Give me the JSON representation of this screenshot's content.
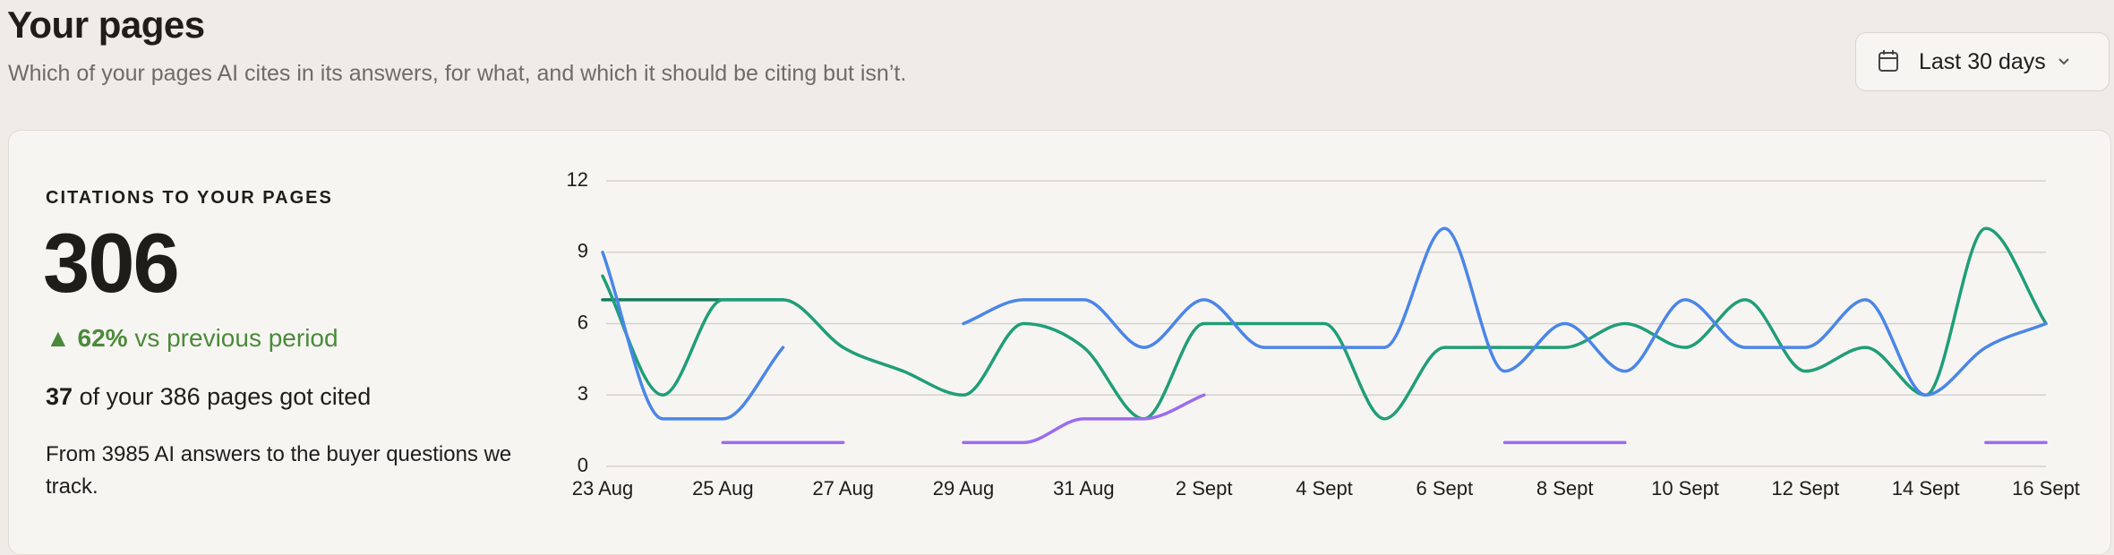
{
  "header": {
    "title": "Your pages",
    "subtitle": "Which of your pages AI cites in its answers, for what, and which it should be citing but isn’t."
  },
  "date_picker": {
    "label": "Last 30 days"
  },
  "stats": {
    "label": "CITATIONS TO YOUR PAGES",
    "value": 306,
    "change": "▲ 62%",
    "change_text": "vs previous period",
    "cited_count": 37,
    "cited_text": "of your 386 pages got cited",
    "note": "From 3985 AI answers to the buyer questions we track."
  },
  "chart_data": {
    "type": "line",
    "categories": [
      "23 Aug",
      null,
      "25 Aug",
      null,
      "27 Aug",
      null,
      "29 Aug",
      null,
      "31 Aug",
      null,
      "2 Sept",
      null,
      "4 Sept",
      null,
      "6 Sept",
      null,
      "8 Sept",
      null,
      "10 Sept",
      null,
      "12 Sept",
      null,
      "14 Sept",
      null,
      "16 Sept"
    ],
    "series": [
      {
        "color": "#167a5e",
        "values": [
          7,
          7,
          7,
          7,
          null,
          null,
          null,
          null,
          null,
          null,
          null,
          null,
          null,
          null,
          null,
          null,
          null,
          null,
          null,
          null,
          null,
          null,
          null,
          null,
          null
        ]
      },
      {
        "color": "#1f9e78",
        "values": [
          8,
          3,
          7,
          7,
          5,
          4,
          3,
          6,
          5,
          2,
          6,
          6,
          6,
          2,
          5,
          5,
          5,
          6,
          5,
          7,
          4,
          5,
          3,
          10,
          6
        ]
      },
      {
        "color": "#4a86e8",
        "values": [
          9,
          2,
          2,
          5,
          null,
          null,
          6,
          7,
          7,
          5,
          7,
          5,
          5,
          5,
          10,
          4,
          6,
          4,
          7,
          5,
          5,
          7,
          3,
          5,
          6
        ]
      },
      {
        "color": "#9a6cf0",
        "values": [
          null,
          null,
          1,
          1,
          1,
          null,
          1,
          1,
          2,
          2,
          3,
          null,
          null,
          null,
          null,
          1,
          1,
          1,
          null,
          null,
          null,
          null,
          null,
          1,
          1
        ]
      }
    ],
    "ylim": [
      0,
      12
    ],
    "yticks": [
      0,
      3,
      6,
      9,
      12
    ],
    "grid": true
  }
}
